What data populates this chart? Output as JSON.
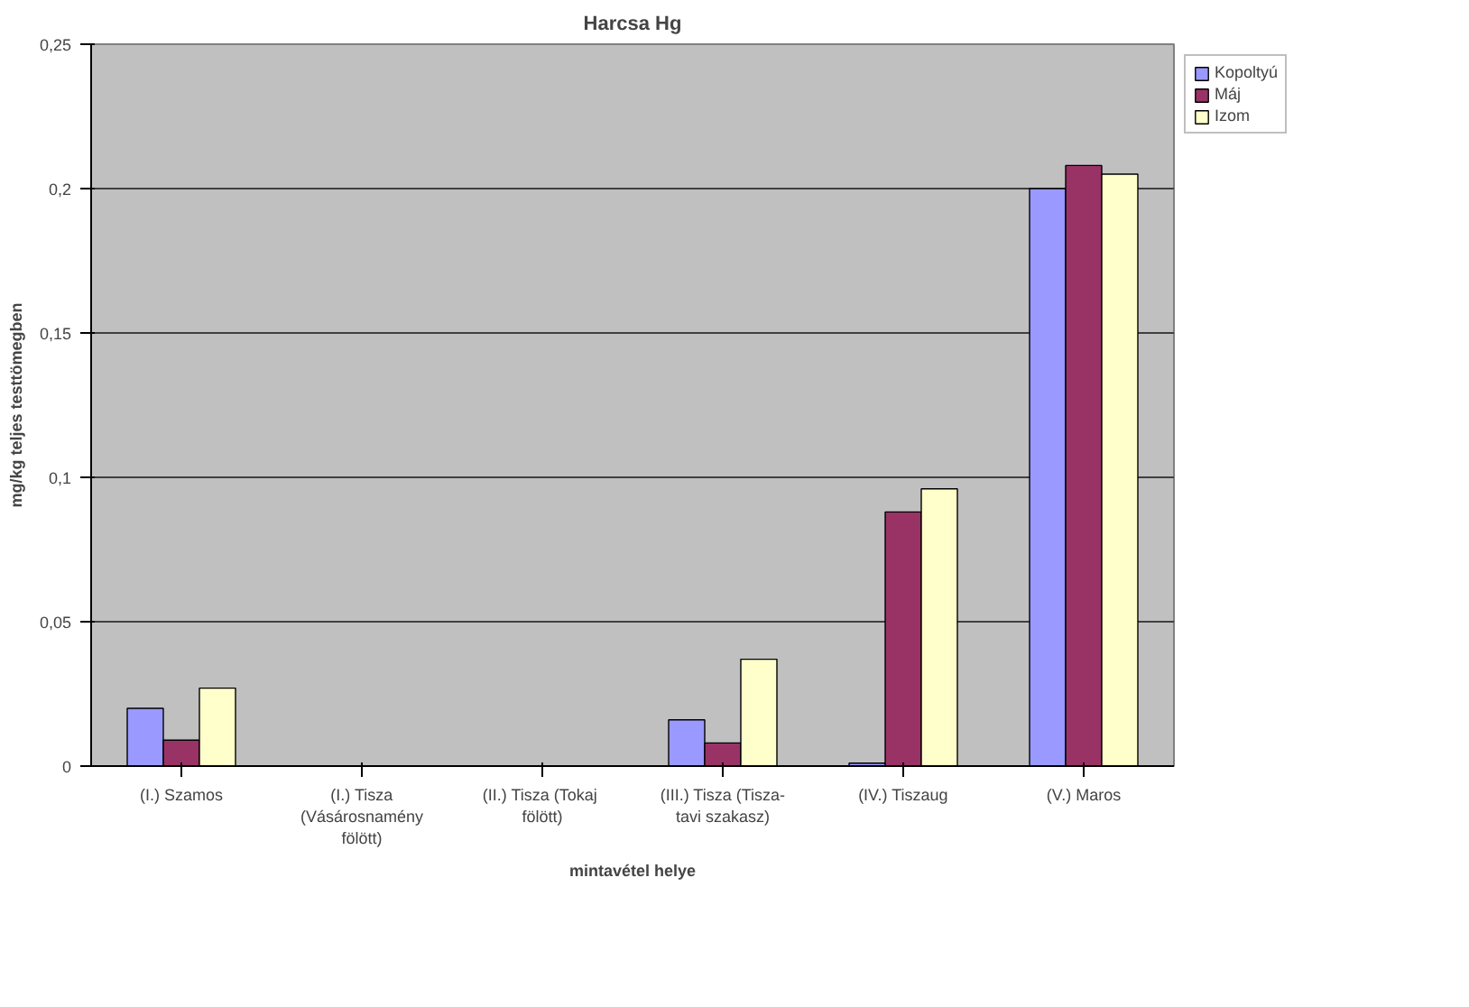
{
  "chart_data": {
    "type": "bar",
    "title": "Harcsa Hg",
    "xlabel": "mintavétel helye",
    "ylabel": "mg/kg teljes testtömegben",
    "categories": [
      "(I.) Szamos",
      "(I.) Tisza\n(Vásárosnamény\nfölött)",
      "(II.)  Tisza (Tokaj\nfölött)",
      "(III.) Tisza (Tisza-\ntavi szakasz)",
      "(IV.) Tiszaug",
      "(V.) Maros"
    ],
    "series": [
      {
        "name": "Kopoltyú",
        "color": "#9999ff",
        "values": [
          0.02,
          null,
          null,
          0.016,
          0.001,
          0.2
        ]
      },
      {
        "name": "Máj",
        "color": "#993366",
        "values": [
          0.009,
          null,
          null,
          0.008,
          0.088,
          0.208
        ]
      },
      {
        "name": "Izom",
        "color": "#ffffcc",
        "values": [
          0.027,
          null,
          null,
          0.037,
          0.096,
          0.205
        ]
      }
    ],
    "ylim": [
      0,
      0.25
    ],
    "yticks": [
      {
        "value": 0,
        "label": "0"
      },
      {
        "value": 0.05,
        "label": "0,05"
      },
      {
        "value": 0.1,
        "label": "0,1"
      },
      {
        "value": 0.15,
        "label": "0,15"
      },
      {
        "value": 0.2,
        "label": "0,2"
      },
      {
        "value": 0.25,
        "label": "0,25"
      }
    ],
    "grid": "y",
    "legend": "top right"
  }
}
